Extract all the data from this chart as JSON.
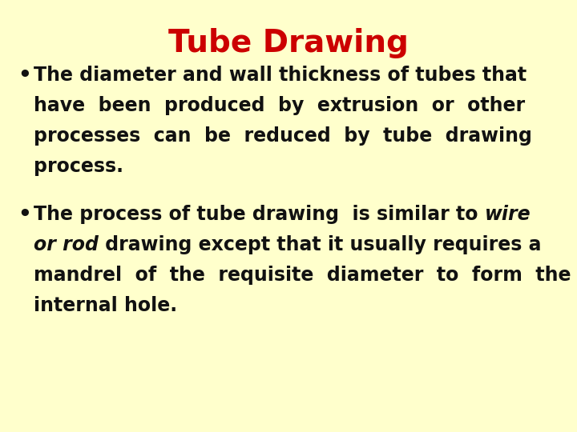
{
  "title": "Tube Drawing",
  "title_color": "#cc0000",
  "title_fontsize": 28,
  "background_color": "#ffffcc",
  "text_color": "#111111",
  "body_fontsize": 17,
  "bullet1_lines": [
    "The diameter and wall thickness of tubes that",
    "have  been  produced  by  extrusion  or  other",
    "processes  can  be  reduced  by  tube  drawing",
    "process."
  ],
  "bullet2_line1_normal": "The process of tube drawing  is similar to ",
  "bullet2_line1_bold": "wire",
  "bullet2_line2_bold": "or rod",
  "bullet2_line2_normal": " drawing except that it usually requires a",
  "bullet2_line3": "mandrel  of  the  requisite  diameter  to  form  the",
  "bullet2_line4": "internal hole."
}
